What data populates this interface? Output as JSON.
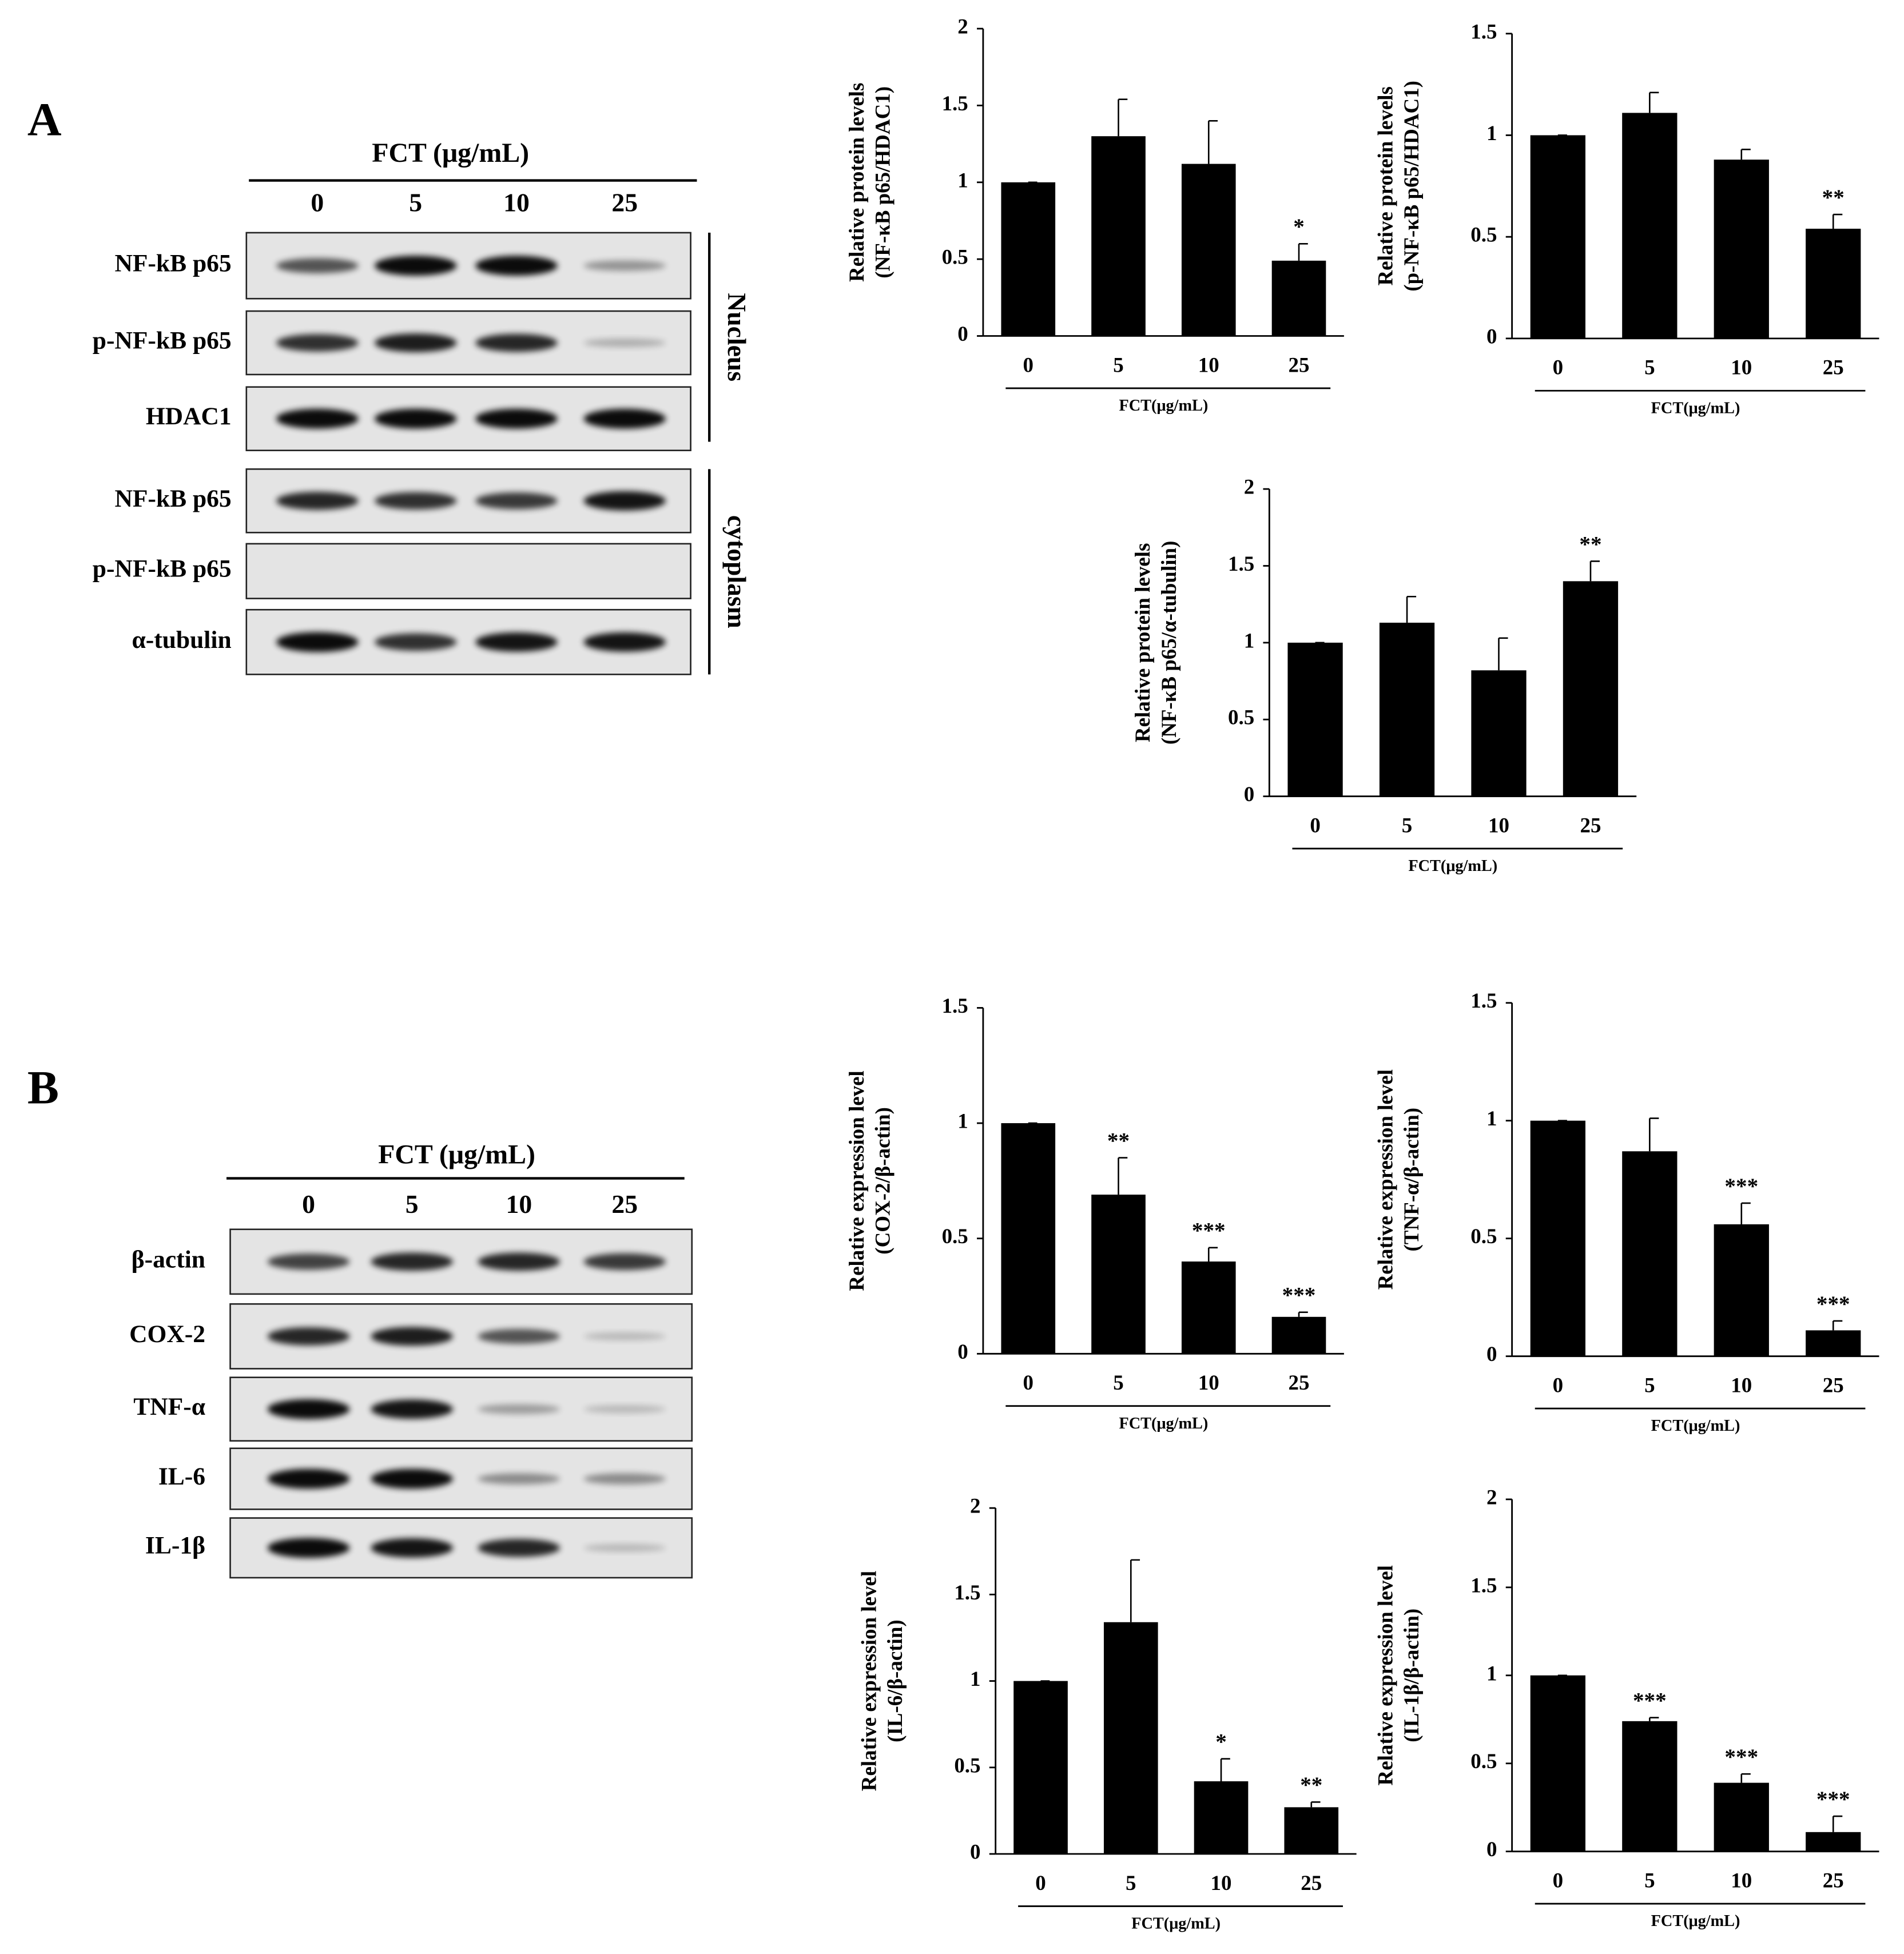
{
  "panels": [
    {
      "label": "A",
      "header": "FCT (μg/mL)",
      "lanes": [
        "0",
        "5",
        "10",
        "25"
      ],
      "blots": [
        "NF-kB p65",
        "p-NF-kB p65",
        "HDAC1",
        "NF-kB p65",
        "p-NF-kB p65",
        "α-tubulin"
      ],
      "groups": [
        "Nucleus",
        "cytoplasm"
      ]
    },
    {
      "label": "B",
      "header": "FCT (μg/mL)",
      "lanes": [
        "0",
        "5",
        "10",
        "25"
      ],
      "blots": [
        "β-actin",
        "COX-2",
        "TNF-α",
        "IL-6",
        "IL-1β"
      ]
    }
  ],
  "chart_data": [
    {
      "type": "bar",
      "ylabel": [
        "Relative protein levels",
        "(NF-κB p65/HDAC1)"
      ],
      "xlabel": "FCT(μg/mL)",
      "categories": [
        "0",
        "5",
        "10",
        "25"
      ],
      "values": [
        1,
        1.3,
        1.12,
        0.49
      ],
      "errors": [
        0,
        0.24,
        0.28,
        0.11
      ],
      "annotations": [
        null,
        null,
        null,
        "*"
      ],
      "color": "#000000",
      "ylim": [
        0,
        2
      ],
      "yticks": [
        0,
        0.5,
        1,
        1.5,
        2
      ]
    },
    {
      "type": "bar",
      "ylabel": [
        "Relative protein levels",
        "(p-NF-κB p65/HDAC1)"
      ],
      "xlabel": "FCT(μg/mL)",
      "categories": [
        "0",
        "5",
        "10",
        "25"
      ],
      "values": [
        1,
        1.11,
        0.88,
        0.54
      ],
      "errors": [
        0,
        0.1,
        0.05,
        0.07
      ],
      "annotations": [
        null,
        null,
        null,
        "**"
      ],
      "color": "#000000",
      "ylim": [
        0,
        1.5
      ],
      "yticks": [
        0,
        0.5,
        1,
        1.5
      ]
    },
    {
      "type": "bar",
      "ylabel": [
        "Relative protein levels",
        "(NF-κB p65/α-tubulin)"
      ],
      "xlabel": "FCT(μg/mL)",
      "categories": [
        "0",
        "5",
        "10",
        "25"
      ],
      "values": [
        1,
        1.13,
        0.82,
        1.4
      ],
      "errors": [
        0,
        0.17,
        0.21,
        0.13
      ],
      "annotations": [
        null,
        null,
        null,
        "**"
      ],
      "color": "#000000",
      "ylim": [
        0,
        2
      ],
      "yticks": [
        0,
        0.5,
        1,
        1.5,
        2
      ]
    },
    {
      "type": "bar",
      "ylabel": [
        "Relative expression level",
        "(COX-2/β-actin)"
      ],
      "xlabel": "FCT(μg/mL)",
      "categories": [
        "0",
        "5",
        "10",
        "25"
      ],
      "values": [
        1,
        0.69,
        0.4,
        0.16
      ],
      "errors": [
        0,
        0.16,
        0.06,
        0.02
      ],
      "annotations": [
        null,
        "**",
        "***",
        "***"
      ],
      "color": "#000000",
      "ylim": [
        0,
        1.5
      ],
      "yticks": [
        0,
        0.5,
        1,
        1.5
      ]
    },
    {
      "type": "bar",
      "ylabel": [
        "Relative expression level",
        "(TNF-α/β-actin)"
      ],
      "xlabel": "FCT(μg/mL)",
      "categories": [
        "0",
        "5",
        "10",
        "25"
      ],
      "values": [
        1,
        0.87,
        0.56,
        0.11
      ],
      "errors": [
        0,
        0.14,
        0.09,
        0.04
      ],
      "annotations": [
        null,
        null,
        "***",
        "***"
      ],
      "color": "#000000",
      "ylim": [
        0,
        1.5
      ],
      "yticks": [
        0,
        0.5,
        1,
        1.5
      ]
    },
    {
      "type": "bar",
      "ylabel": [
        "Relative expression level",
        "(IL-6/β-actin)"
      ],
      "xlabel": "FCT(μg/mL)",
      "categories": [
        "0",
        "5",
        "10",
        "25"
      ],
      "values": [
        1,
        1.34,
        0.42,
        0.27
      ],
      "errors": [
        0,
        0.36,
        0.13,
        0.03
      ],
      "annotations": [
        null,
        null,
        "*",
        "**"
      ],
      "color": "#000000",
      "ylim": [
        0,
        2
      ],
      "yticks": [
        0,
        0.5,
        1,
        1.5,
        2
      ]
    },
    {
      "type": "bar",
      "ylabel": [
        "Relative expression level",
        "(IL-1β/β-actin)"
      ],
      "xlabel": "FCT(μg/mL)",
      "categories": [
        "0",
        "5",
        "10",
        "25"
      ],
      "values": [
        1,
        0.74,
        0.39,
        0.11
      ],
      "errors": [
        0,
        0.02,
        0.05,
        0.09
      ],
      "annotations": [
        null,
        "***",
        "***",
        "***"
      ],
      "color": "#000000",
      "ylim": [
        0,
        2
      ],
      "yticks": [
        0,
        0.5,
        1,
        1.5,
        2
      ]
    }
  ]
}
